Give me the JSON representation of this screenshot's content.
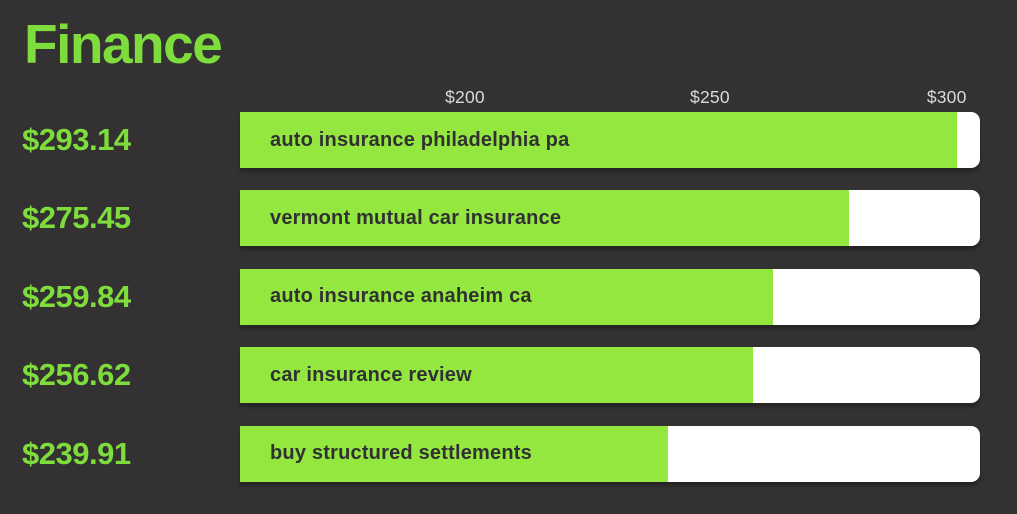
{
  "header": {
    "title": "Finance"
  },
  "chart_data": {
    "type": "bar",
    "orientation": "horizontal",
    "title": "Finance",
    "xlabel": "",
    "ylabel": "",
    "axis_ticks": [
      {
        "label": "$200",
        "value": 200,
        "position_percent": 30.4
      },
      {
        "label": "$250",
        "value": 250,
        "position_percent": 63.5
      },
      {
        "label": "$300",
        "value": 300,
        "position_percent": 95.5
      }
    ],
    "categories": [
      "auto insurance philadelphia pa",
      "vermont mutual car insurance",
      "auto insurance anaheim ca",
      "car insurance review",
      "buy structured settlements"
    ],
    "values": [
      293.14,
      275.45,
      259.84,
      256.62,
      239.91
    ],
    "rows": [
      {
        "value_label": "$293.14",
        "keyword": "auto insurance philadelphia pa",
        "value": 293.14,
        "fill_percent": 96.9
      },
      {
        "value_label": "$275.45",
        "keyword": "vermont mutual car insurance",
        "value": 275.45,
        "fill_percent": 82.3
      },
      {
        "value_label": "$259.84",
        "keyword": "auto insurance anaheim ca",
        "value": 259.84,
        "fill_percent": 72.0
      },
      {
        "value_label": "$256.62",
        "keyword": "car insurance review",
        "value": 256.62,
        "fill_percent": 69.3
      },
      {
        "value_label": "$239.91",
        "keyword": "buy structured settlements",
        "value": 239.91,
        "fill_percent": 57.9
      }
    ],
    "legend": null,
    "grid": false,
    "colors": {
      "background": "#333132",
      "title_text": "#7edd3c",
      "value_text": "#7edd3c",
      "bar_fill": "#93e73f",
      "bar_track": "#ffffff",
      "keyword_text": "#313133",
      "axis_text": "#d9d9d9"
    }
  }
}
